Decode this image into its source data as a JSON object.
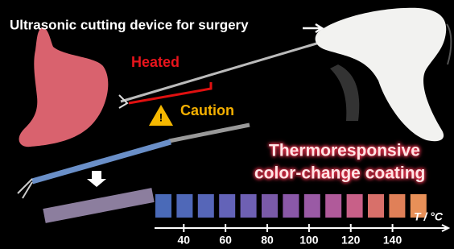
{
  "caption": {
    "title": "Ultrasonic cutting device for surgery",
    "heated": "Heated",
    "caution": "Caution",
    "coating_line1": "Thermoresponsive",
    "coating_line2": "color-change coating"
  },
  "scale": {
    "xlim": [
      26,
      166
    ],
    "ticks": [
      40,
      60,
      80,
      100,
      120,
      140
    ],
    "axis_label": "T / °C",
    "swatch_colors": [
      "#4a6ab8",
      "#4f68b8",
      "#5666b8",
      "#6363b8",
      "#6e60b3",
      "#7a5aa8",
      "#8a58a8",
      "#9a5aa5",
      "#b05a9a",
      "#c86088",
      "#d8706a",
      "#e08058",
      "#e89058"
    ]
  }
}
